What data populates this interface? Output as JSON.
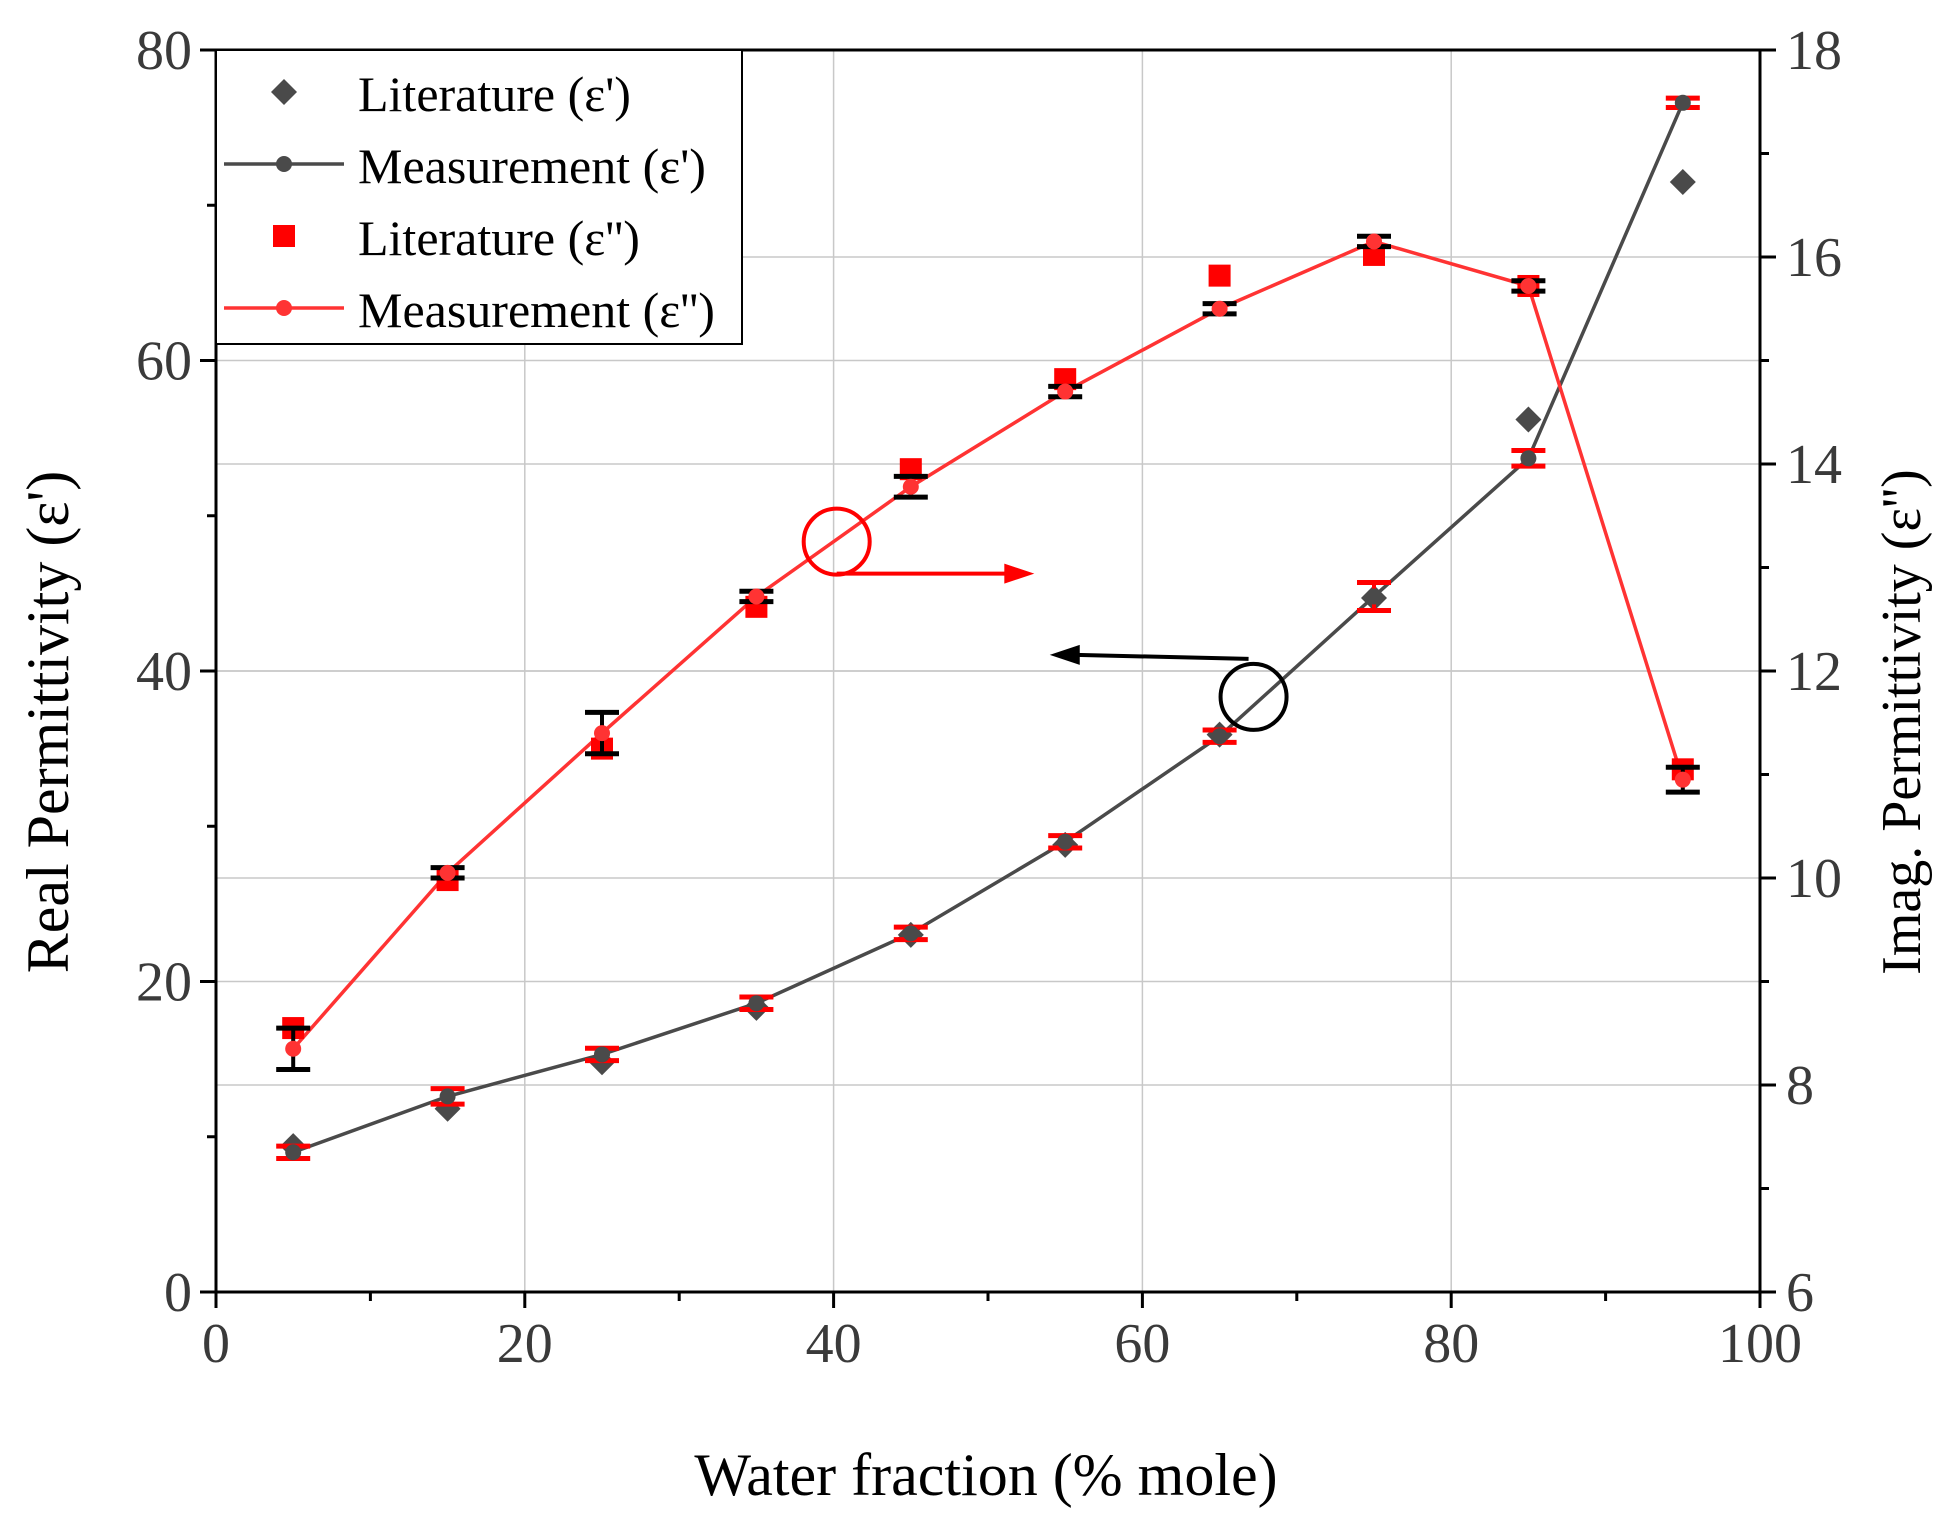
{
  "chart_data": {
    "type": "scatter",
    "xlabel": "Water fraction (% mole)",
    "ylabel_left": "Real Permittivity (ε')",
    "ylabel_right": "Imag. Permittivity (ε'')",
    "xlim": [
      0,
      100
    ],
    "ylim_left": [
      0,
      80
    ],
    "ylim_right": [
      6,
      18
    ],
    "x_ticks": [
      0,
      20,
      40,
      60,
      80,
      100
    ],
    "y_left_ticks": [
      0,
      20,
      40,
      60,
      80
    ],
    "y_right_ticks": [
      6,
      8,
      10,
      12,
      14,
      16,
      18
    ],
    "x_tick_labels": [
      "0",
      "20",
      "40",
      "60",
      "80",
      "100"
    ],
    "y_left_tick_labels": [
      "0",
      "20",
      "40",
      "60",
      "80"
    ],
    "y_right_tick_labels": [
      "6",
      "8",
      "10",
      "12",
      "14",
      "16",
      "18"
    ],
    "grid": true,
    "legend_position": "top-left",
    "x": [
      5,
      15,
      25,
      35,
      45,
      55,
      65,
      75,
      85,
      95
    ],
    "series": [
      {
        "name": "Literature (ε')",
        "axis": "left",
        "marker": "diamond",
        "line": false,
        "color": "#4a4a4a",
        "values": [
          9.4,
          11.8,
          14.8,
          18.3,
          23.0,
          28.8,
          35.9,
          44.7,
          56.2,
          71.5
        ]
      },
      {
        "name": "Measurement (ε')",
        "axis": "left",
        "marker": "circle",
        "line": true,
        "color": "#4a4a4a",
        "values": [
          9.0,
          12.6,
          15.3,
          18.6,
          23.1,
          29.0,
          35.8,
          44.8,
          53.7,
          76.6
        ],
        "errors": [
          0.4,
          0.5,
          0.4,
          0.4,
          0.4,
          0.4,
          0.4,
          0.9,
          0.5,
          0.3
        ]
      },
      {
        "name": "Literature (ε'')",
        "axis": "right",
        "marker": "square",
        "line": false,
        "color": "#ff0000",
        "values": [
          8.55,
          9.98,
          11.25,
          12.62,
          13.95,
          14.82,
          15.82,
          16.02,
          15.72,
          11.05
        ]
      },
      {
        "name": "Measurement (ε'')",
        "axis": "right",
        "marker": "circle",
        "line": true,
        "color": "#ff3333",
        "values": [
          8.35,
          10.05,
          11.4,
          12.72,
          13.78,
          14.7,
          15.5,
          16.15,
          15.72,
          10.95
        ],
        "errors": [
          0.2,
          0.05,
          0.2,
          0.05,
          0.1,
          0.05,
          0.05,
          0.05,
          0.05,
          0.12
        ]
      }
    ],
    "annotations": [
      {
        "label": "circle-right-arrow",
        "color": "#ff0000",
        "x": 40.2,
        "y_axis": "right",
        "y": 13.25,
        "points_to": "right-axis",
        "arrow_to_x": 53
      },
      {
        "label": "circle-left-arrow",
        "color": "#000000",
        "x": 67.2,
        "y_axis": "right",
        "y": 11.75,
        "points_to": "left-axis",
        "arrow_to_x": 54
      }
    ]
  }
}
